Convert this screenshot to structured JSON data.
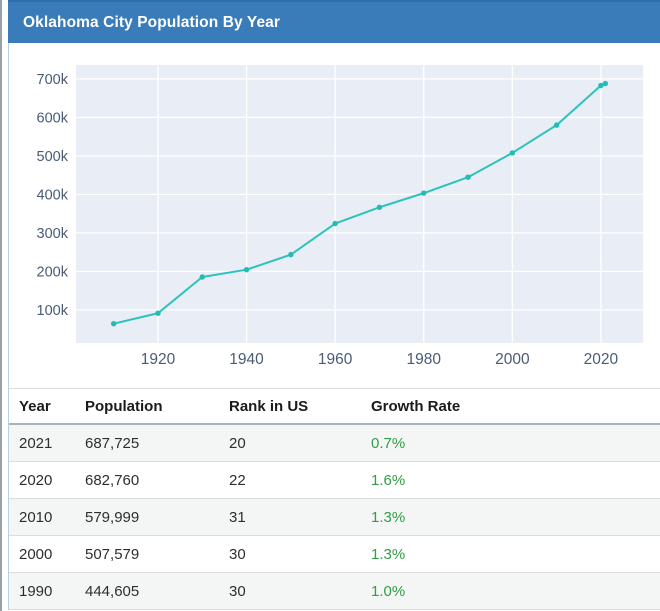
{
  "card": {
    "title": "Oklahoma City Population By Year"
  },
  "chart_data": {
    "type": "line",
    "title": "",
    "xlabel": "",
    "ylabel": "",
    "x": [
      1910,
      1920,
      1930,
      1940,
      1950,
      1960,
      1970,
      1980,
      1990,
      2000,
      2010,
      2020,
      2021
    ],
    "series": [
      {
        "name": "Population",
        "values": [
          64205,
          91295,
          185389,
          204424,
          243504,
          324253,
          366481,
          403213,
          444605,
          507579,
          579999,
          682760,
          687725
        ]
      }
    ],
    "x_tick_values": [
      1920,
      1940,
      1960,
      1980,
      2000,
      2020
    ],
    "x_tick_labels": [
      "1920",
      "1940",
      "1960",
      "1980",
      "2000",
      "2020"
    ],
    "y_tick_values": [
      100000,
      200000,
      300000,
      400000,
      500000,
      600000,
      700000
    ],
    "y_tick_labels": [
      "100k",
      "200k",
      "300k",
      "400k",
      "500k",
      "600k",
      "700k"
    ],
    "x_range": [
      1901.5,
      2029.5
    ],
    "y_range": [
      14000,
      736000
    ],
    "grid": true,
    "legend_position": "none",
    "line_color": "#2cc3ba",
    "marker_color": "#1fbdb4",
    "plot_bg_color": "#e8edf6",
    "grid_color": "#ffffff",
    "tick_label_color": "#4a5b76"
  },
  "table": {
    "columns": [
      "Year",
      "Population",
      "Rank in US",
      "Growth Rate"
    ],
    "rows": [
      {
        "year": "2021",
        "population": "687,725",
        "rank": "20",
        "growth": "0.7%"
      },
      {
        "year": "2020",
        "population": "682,760",
        "rank": "22",
        "growth": "1.6%"
      },
      {
        "year": "2010",
        "population": "579,999",
        "rank": "31",
        "growth": "1.3%"
      },
      {
        "year": "2000",
        "population": "507,579",
        "rank": "30",
        "growth": "1.3%"
      },
      {
        "year": "1990",
        "population": "444,605",
        "rank": "30",
        "growth": "1.0%"
      }
    ],
    "growth_color": "#2f9e44"
  }
}
